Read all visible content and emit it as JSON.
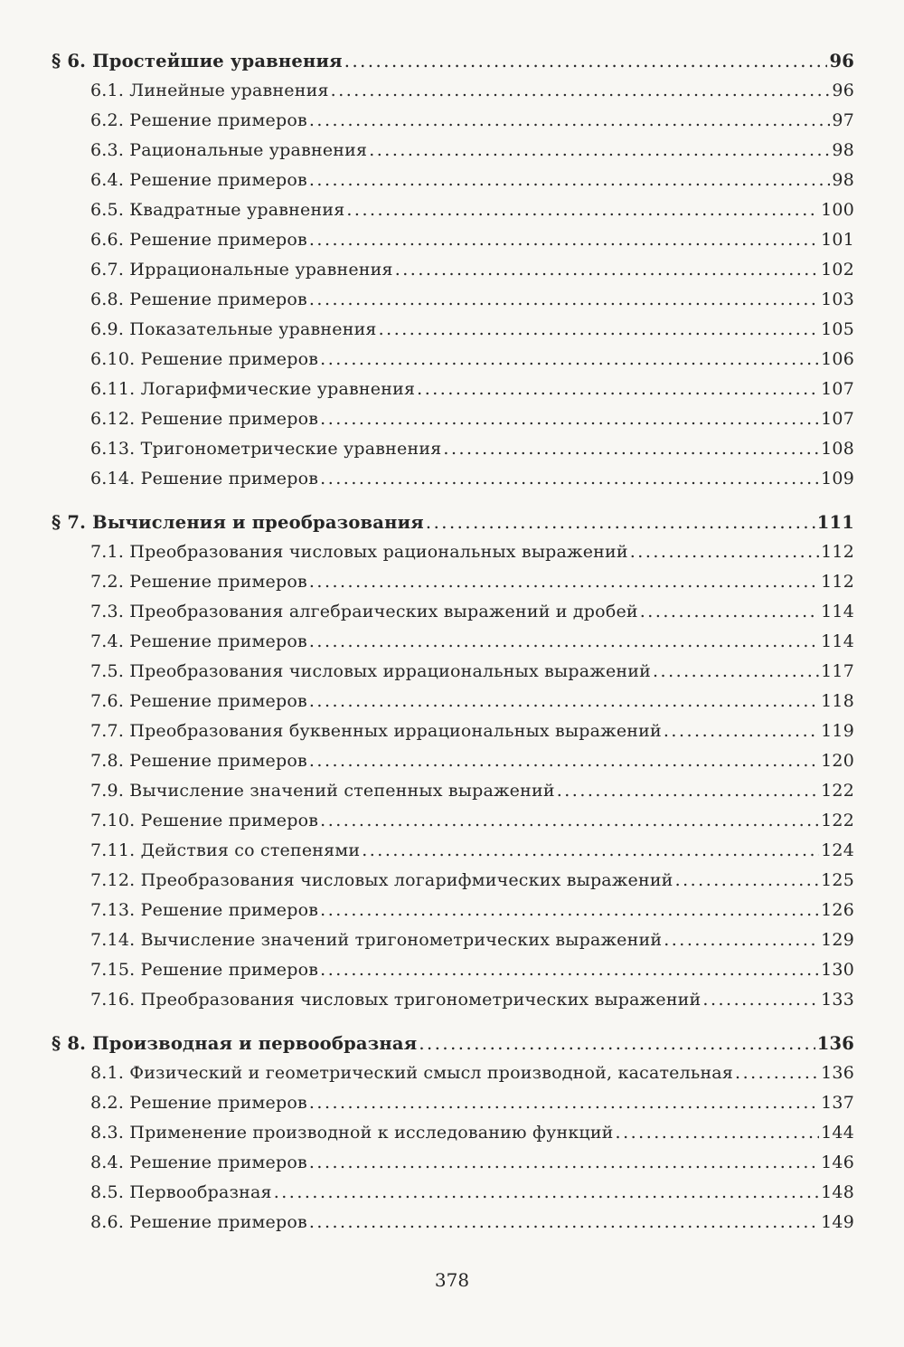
{
  "sections": [
    {
      "title": "§ 6. Простейшие уравнения",
      "page": "96",
      "items": [
        {
          "title": "6.1. Линейные уравнения",
          "page": "96"
        },
        {
          "title": "6.2. Решение примеров",
          "page": "97"
        },
        {
          "title": "6.3. Рациональные уравнения",
          "page": "98"
        },
        {
          "title": "6.4. Решение примеров",
          "page": "98"
        },
        {
          "title": "6.5. Квадратные уравнения",
          "page": "100"
        },
        {
          "title": "6.6. Решение примеров",
          "page": "101"
        },
        {
          "title": "6.7. Иррациональные уравнения",
          "page": "102"
        },
        {
          "title": "6.8. Решение примеров",
          "page": "103"
        },
        {
          "title": "6.9. Показательные уравнения",
          "page": "105"
        },
        {
          "title": "6.10. Решение примеров",
          "page": "106"
        },
        {
          "title": "6.11. Логарифмические уравнения",
          "page": "107"
        },
        {
          "title": "6.12. Решение примеров",
          "page": "107"
        },
        {
          "title": "6.13. Тригонометрические уравнения",
          "page": "108"
        },
        {
          "title": "6.14. Решение примеров",
          "page": "109"
        }
      ]
    },
    {
      "title": "§ 7. Вычисления и преобразования",
      "page": "111",
      "items": [
        {
          "title": "7.1. Преобразования числовых рациональных выражений",
          "page": "112"
        },
        {
          "title": "7.2. Решение примеров",
          "page": "112"
        },
        {
          "title": "7.3. Преобразования алгебраических выражений и дробей",
          "page": "114"
        },
        {
          "title": "7.4. Решение примеров",
          "page": "114"
        },
        {
          "title": "7.5. Преобразования числовых иррациональных выражений",
          "page": "117"
        },
        {
          "title": "7.6. Решение примеров",
          "page": "118"
        },
        {
          "title": "7.7. Преобразования буквенных иррациональных выражений",
          "page": "119"
        },
        {
          "title": "7.8. Решение примеров",
          "page": "120"
        },
        {
          "title": "7.9. Вычисление значений степенных выражений",
          "page": "122"
        },
        {
          "title": "7.10. Решение примеров",
          "page": "122"
        },
        {
          "title": "7.11. Действия со степенями",
          "page": "124"
        },
        {
          "title": "7.12. Преобразования числовых логарифмических выражений",
          "page": "125"
        },
        {
          "title": "7.13. Решение примеров",
          "page": "126"
        },
        {
          "title": "7.14. Вычисление значений тригонометрических выражений",
          "page": "129"
        },
        {
          "title": "7.15. Решение примеров",
          "page": "130"
        },
        {
          "title": "7.16. Преобразования числовых тригонометрических выражений",
          "page": "133"
        }
      ]
    },
    {
      "title": "§ 8. Производная и первообразная",
      "page": "136",
      "items": [
        {
          "title": "8.1. Физический и геометрический смысл производной, касательная",
          "page": "136"
        },
        {
          "title": "8.2. Решение примеров",
          "page": "137"
        },
        {
          "title": "8.3. Применение производной к исследованию функций",
          "page": "144"
        },
        {
          "title": "8.4. Решение примеров",
          "page": "146"
        },
        {
          "title": "8.5. Первообразная",
          "page": "148"
        },
        {
          "title": "8.6. Решение примеров",
          "page": "149"
        }
      ]
    }
  ],
  "page_number": "378"
}
